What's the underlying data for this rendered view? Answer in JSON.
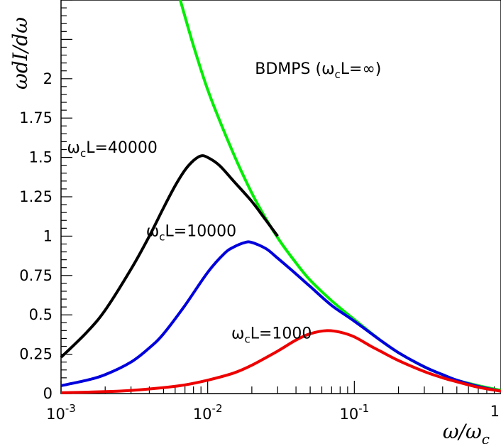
{
  "chart_data": {
    "type": "line",
    "title": "",
    "xlabel": "ω/ω_c",
    "ylabel": "ωdI/dω",
    "x_scale": "log",
    "xlim": [
      0.001,
      1
    ],
    "ylim": [
      0,
      2.5
    ],
    "grid": false,
    "legend": "none",
    "x_ticks": [
      {
        "value": 0.001,
        "base": "10",
        "exp": "-3"
      },
      {
        "value": 0.01,
        "base": "10",
        "exp": "-2"
      },
      {
        "value": 0.1,
        "base": "10",
        "exp": "-1"
      },
      {
        "value": 1,
        "base": "",
        "exp": "1"
      }
    ],
    "y_ticks": [
      {
        "value": 0,
        "label": "0"
      },
      {
        "value": 0.25,
        "label": "0.25"
      },
      {
        "value": 0.5,
        "label": "0.5"
      },
      {
        "value": 0.75,
        "label": "0.75"
      },
      {
        "value": 1,
        "label": "1"
      },
      {
        "value": 1.25,
        "label": "1.25"
      },
      {
        "value": 1.5,
        "label": "1.5"
      },
      {
        "value": 1.75,
        "label": "1.75"
      },
      {
        "value": 2,
        "label": "2"
      }
    ],
    "series": [
      {
        "color": "#00ee00",
        "x": [
          0.0065,
          0.008,
          0.01,
          0.013,
          0.017,
          0.022,
          0.03,
          0.04,
          0.05,
          0.07,
          0.1,
          0.15,
          0.2,
          0.3,
          0.4,
          0.5,
          0.7,
          1.0
        ],
        "y": [
          2.5,
          2.21,
          1.93,
          1.66,
          1.41,
          1.2,
          0.99,
          0.83,
          0.72,
          0.59,
          0.47,
          0.34,
          0.26,
          0.17,
          0.12,
          0.085,
          0.05,
          0.02
        ]
      },
      {
        "color": "#000000",
        "x": [
          0.001,
          0.0015,
          0.002,
          0.003,
          0.004,
          0.005,
          0.006,
          0.007,
          0.008,
          0.009,
          0.01,
          0.012,
          0.015,
          0.02,
          0.025,
          0.03
        ],
        "y": [
          0.23,
          0.39,
          0.53,
          0.79,
          1.0,
          1.18,
          1.32,
          1.42,
          1.48,
          1.51,
          1.5,
          1.45,
          1.35,
          1.22,
          1.1,
          1.0
        ]
      },
      {
        "color": "#0000dd",
        "x": [
          0.001,
          0.0015,
          0.002,
          0.003,
          0.004,
          0.005,
          0.007,
          0.01,
          0.013,
          0.015,
          0.018,
          0.02,
          0.025,
          0.03,
          0.04,
          0.05,
          0.07,
          0.1,
          0.15,
          0.2,
          0.3,
          0.4,
          0.5,
          0.7,
          1.0
        ],
        "y": [
          0.05,
          0.085,
          0.12,
          0.2,
          0.29,
          0.38,
          0.56,
          0.77,
          0.89,
          0.93,
          0.96,
          0.96,
          0.92,
          0.86,
          0.76,
          0.68,
          0.56,
          0.46,
          0.34,
          0.26,
          0.17,
          0.12,
          0.085,
          0.045,
          0.015
        ]
      },
      {
        "color": "#ee0000",
        "x": [
          0.001,
          0.002,
          0.003,
          0.005,
          0.007,
          0.01,
          0.015,
          0.02,
          0.03,
          0.04,
          0.05,
          0.065,
          0.08,
          0.1,
          0.13,
          0.15,
          0.2,
          0.3,
          0.4,
          0.5,
          0.7,
          1.0
        ],
        "y": [
          0.005,
          0.012,
          0.02,
          0.038,
          0.055,
          0.085,
          0.13,
          0.18,
          0.27,
          0.34,
          0.38,
          0.4,
          0.39,
          0.36,
          0.3,
          0.27,
          0.21,
          0.14,
          0.1,
          0.075,
          0.04,
          0.015
        ]
      }
    ],
    "annotations": [
      {
        "text": "BDMPS (ω",
        "sub": "c",
        "text2": "L=∞)",
        "x": 0.021,
        "y": 2.03
      },
      {
        "text": "ω",
        "sub": "c",
        "text2": "L=40000",
        "x": 0.0011,
        "y": 1.53
      },
      {
        "text": "ω",
        "sub": "c",
        "text2": "L=10000",
        "x": 0.0038,
        "y": 1.0
      },
      {
        "text": "ω",
        "sub": "c",
        "text2": "L=1000",
        "x": 0.0145,
        "y": 0.35
      }
    ]
  }
}
